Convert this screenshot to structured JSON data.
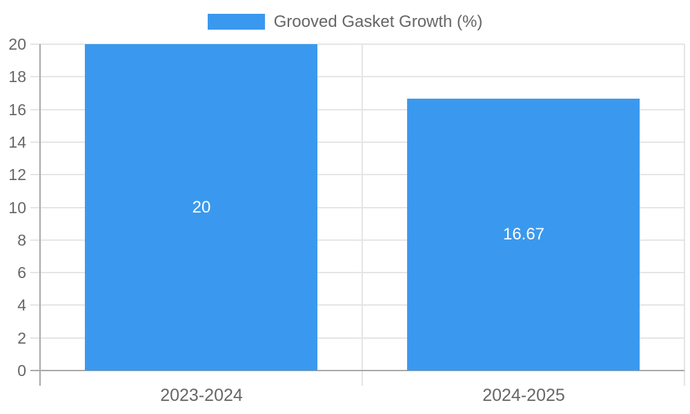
{
  "chart_data": {
    "type": "bar",
    "categories": [
      "2023-2024",
      "2024-2025"
    ],
    "series": [
      {
        "name": "Grooved Gasket Growth (%)",
        "values": [
          20,
          16.67
        ]
      }
    ],
    "value_labels": [
      "20",
      "16.67"
    ],
    "y_tick_labels": [
      "0",
      "2",
      "4",
      "6",
      "8",
      "10",
      "12",
      "14",
      "16",
      "18",
      "20"
    ],
    "ylim": [
      0,
      20
    ],
    "ytick_step": 2,
    "grid": true,
    "legend_position": "top-center",
    "colors": {
      "bar": "#3a99ee",
      "grid": "#e5e5e5",
      "axis": "#a8a8a8",
      "tick_text": "#666666",
      "value_text": "#ffffff",
      "background": "#ffffff"
    }
  }
}
